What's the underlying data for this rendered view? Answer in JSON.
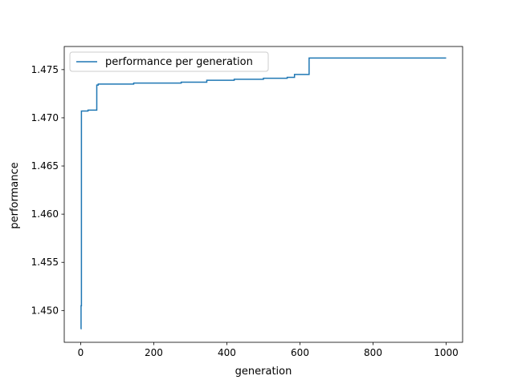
{
  "chart_data": {
    "type": "line",
    "title": "",
    "xlabel": "generation",
    "ylabel": "performance",
    "xlim": [
      -45,
      1045
    ],
    "ylim": [
      1.4467,
      1.4774
    ],
    "x_ticks": [
      0,
      200,
      400,
      600,
      800,
      1000
    ],
    "y_ticks": [
      1.45,
      1.455,
      1.46,
      1.465,
      1.47,
      1.475
    ],
    "x_tick_labels": [
      "0",
      "200",
      "400",
      "600",
      "800",
      "1000"
    ],
    "y_tick_labels": [
      "1.450",
      "1.455",
      "1.460",
      "1.465",
      "1.470",
      "1.475"
    ],
    "grid": false,
    "legend": {
      "position": "top-left",
      "entries": [
        "performance per generation"
      ]
    },
    "series": [
      {
        "name": "performance per generation",
        "color": "#1f77b4",
        "step": true,
        "x": [
          0,
          1,
          2,
          3,
          10,
          20,
          42,
          44,
          48,
          55,
          70,
          145,
          275,
          330,
          345,
          420,
          500,
          565,
          585,
          625,
          1000
        ],
        "y": [
          1.4481,
          1.4505,
          1.4707,
          1.4707,
          1.4707,
          1.4708,
          1.4708,
          1.4734,
          1.4735,
          1.4735,
          1.4735,
          1.4736,
          1.4737,
          1.4737,
          1.4739,
          1.474,
          1.4741,
          1.4742,
          1.4745,
          1.4762,
          1.4762
        ]
      }
    ]
  }
}
